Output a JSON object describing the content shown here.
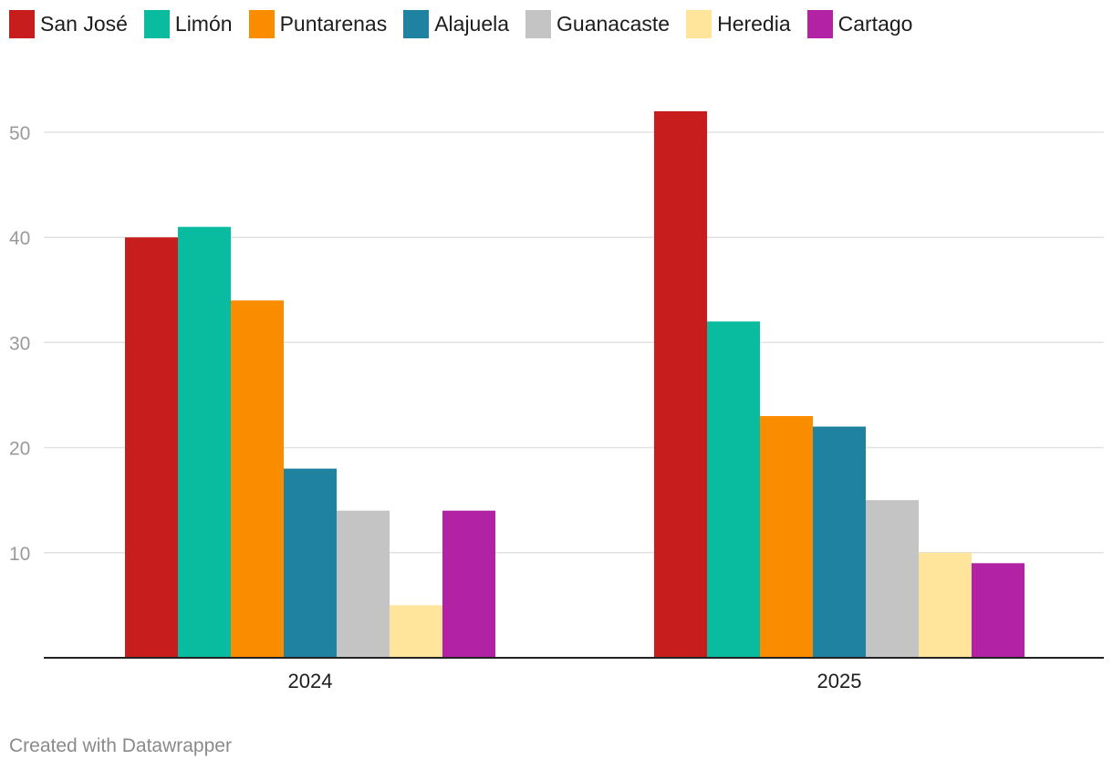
{
  "chart_data": {
    "type": "bar",
    "categories": [
      "2024",
      "2025"
    ],
    "series": [
      {
        "name": "San José",
        "color": "#c71e1d",
        "values": [
          40,
          52
        ]
      },
      {
        "name": "Limón",
        "color": "#09bb9f",
        "values": [
          41,
          32
        ]
      },
      {
        "name": "Puntarenas",
        "color": "#fa8c00",
        "values": [
          34,
          23
        ]
      },
      {
        "name": "Alajuela",
        "color": "#1f82a1",
        "values": [
          18,
          22
        ]
      },
      {
        "name": "Guanacaste",
        "color": "#c4c4c4",
        "values": [
          14,
          15
        ]
      },
      {
        "name": "Heredia",
        "color": "#ffe59c",
        "values": [
          5,
          10
        ]
      },
      {
        "name": "Cartago",
        "color": "#b122a4",
        "values": [
          14,
          9
        ]
      }
    ],
    "yticks": [
      10,
      20,
      30,
      40,
      50
    ],
    "ylim": [
      0,
      55
    ],
    "grid": true,
    "legend_position": "top-left",
    "title": "",
    "xlabel": "",
    "ylabel": ""
  },
  "footer": {
    "credit": "Created with Datawrapper"
  }
}
